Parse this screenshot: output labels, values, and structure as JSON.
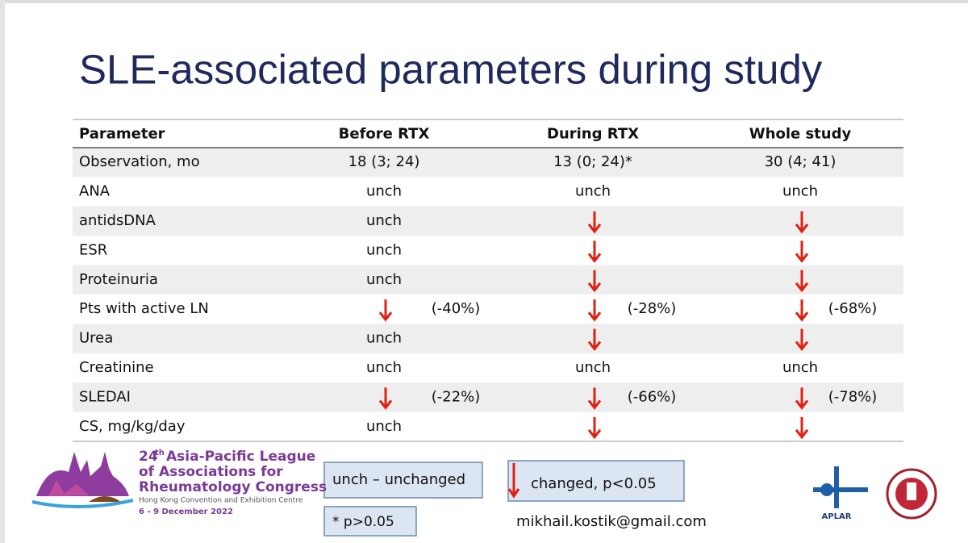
{
  "title": "SLE-associated parameters during study",
  "table": {
    "header": [
      "Parameter",
      "Before RTX",
      "During RTX",
      "Whole study"
    ],
    "rows": [
      [
        "Observation, mo",
        "18 (3; 24)",
        "13 (0; 24)*",
        "30 (4; 41)"
      ],
      [
        "ANA",
        "unch",
        "unch",
        "unch"
      ],
      [
        "antidsDNA",
        "unch",
        {
          "arrow": true
        },
        {
          "arrow": true
        }
      ],
      [
        "ESR",
        "unch",
        {
          "arrow": true
        },
        {
          "arrow": true
        }
      ],
      [
        "Proteinuria",
        "unch",
        {
          "arrow": true
        },
        {
          "arrow": true
        }
      ],
      [
        "Pts with active LN",
        {
          "arrow": true,
          "note": "(-40%)"
        },
        {
          "arrow": true,
          "note": "(-28%)"
        },
        {
          "arrow": true,
          "note": "(-68%)"
        }
      ],
      [
        "Urea",
        "unch",
        {
          "arrow": true
        },
        {
          "arrow": true
        }
      ],
      [
        "Creatinine",
        "unch",
        "unch",
        "unch"
      ],
      [
        "SLEDAI",
        {
          "arrow": true,
          "note": "(-22%)"
        },
        {
          "arrow": true,
          "note": "(-66%)"
        },
        {
          "arrow": true,
          "note": "(-78%)"
        }
      ],
      [
        "CS, mg/kg/day",
        "unch",
        {
          "arrow": true
        },
        {
          "arrow": true
        }
      ]
    ]
  },
  "legend": {
    "unchanged": "unch – unchanged",
    "changed": "changed, p<0.05",
    "footnote": "* p>0.05"
  },
  "email": "mikhail.kostik@gmail.com",
  "congress": {
    "number": "24",
    "suffix": "th",
    "line1": "Asia-Pacific League",
    "line2": "of Associations for",
    "line3": "Rheumatology Congress",
    "venue": "Hong Kong Convention and Exhibition Centre",
    "dates": "6 - 9 December 2022"
  },
  "aplar": "APLAR"
}
